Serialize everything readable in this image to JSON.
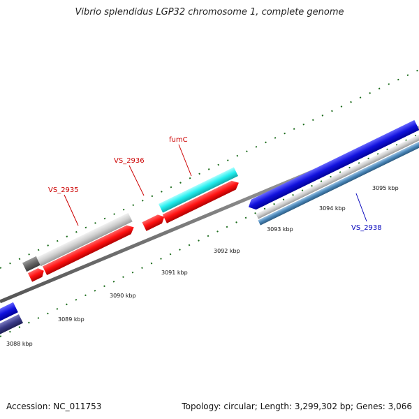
{
  "title": "Vibrio splendidus LGP32 chromosome 1, complete genome",
  "footer": {
    "accession": "Accession: NC_011753",
    "summary": "Topology: circular; Length: 3,299,302 bp; Genes: 3,066"
  },
  "kbp_labels": [
    "3088 kbp",
    "3089 kbp",
    "3090 kbp",
    "3091 kbp",
    "3092 kbp",
    "3093 kbp",
    "3094 kbp",
    "3095 kbp"
  ],
  "gene_labels": [
    {
      "id": "vs2935",
      "text": "VS_2935",
      "color": "#cc0000"
    },
    {
      "id": "vs2936",
      "text": "VS_2936",
      "color": "#cc0000"
    },
    {
      "id": "fumc",
      "text": "fumC",
      "color": "#cc0000"
    },
    {
      "id": "vs2938",
      "text": "VS_2938",
      "color": "#0000bb"
    }
  ],
  "colors": {
    "tick": "#1a6b1a",
    "backbone": "#808080",
    "red": "#ff1111",
    "cyan": "#22eeee",
    "light_gray": "#c8c8c8",
    "dark_gray": "#666666",
    "blue": "#1111dd",
    "navy": "#3a3a88",
    "steel_blue": "#4a86b8"
  }
}
